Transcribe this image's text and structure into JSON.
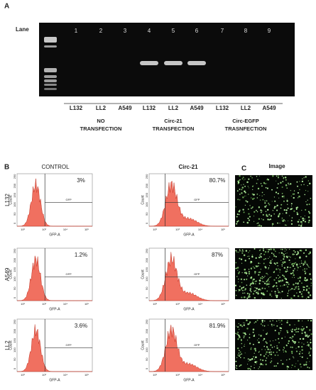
{
  "panel_a": {
    "label": "A",
    "lane_title": "Lane",
    "lanes": [
      "1",
      "2",
      "3",
      "4",
      "5",
      "6",
      "7",
      "8",
      "9"
    ],
    "samples": [
      "L132",
      "LL2",
      "A549",
      "L132",
      "LL2",
      "A549",
      "L132",
      "LL2",
      "A549"
    ],
    "groups": [
      [
        "NO",
        "TRANSFECTION"
      ],
      [
        "Circ-21",
        "TRANSFECTION"
      ],
      [
        "Circ-EGFP",
        "TRASNFECTION"
      ]
    ]
  },
  "panel_b": {
    "label": "B",
    "columns": [
      "CONTROL",
      "Circ-21"
    ],
    "rows": [
      {
        "name": "L132",
        "percent": [
          "3%",
          "80.7%"
        ]
      },
      {
        "name": "A549",
        "percent": [
          "1.2%",
          "87%"
        ]
      },
      {
        "name": "LL2",
        "percent": [
          "3.6%",
          "81.9%"
        ]
      }
    ],
    "axis": {
      "x_title": "GFP-A",
      "y_title": "Count",
      "gate": "GFP",
      "xticks": [
        "10²",
        "10³",
        "10⁴",
        "10⁵"
      ],
      "yticks": [
        "0",
        "50",
        "100",
        "150",
        "200",
        "250"
      ]
    }
  },
  "panel_c": {
    "label": "C",
    "title": "Image"
  }
}
